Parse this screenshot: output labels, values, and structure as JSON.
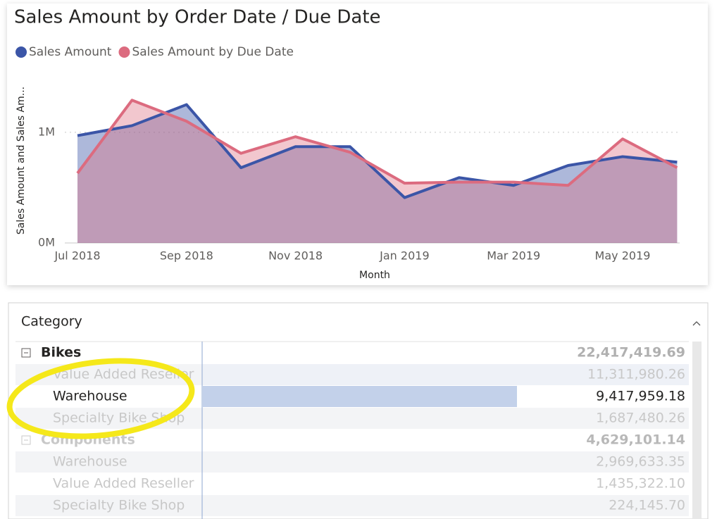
{
  "chart_data": {
    "type": "line",
    "title": "Sales Amount by Order Date / Due Date",
    "x_label": "Month",
    "y_label": "Sales Amount and Sales Am...",
    "categories": [
      "Jul 2018",
      null,
      "Sep 2018",
      null,
      "Nov 2018",
      null,
      "Jan 2019",
      null,
      "Mar 2019",
      null,
      "May 2019",
      null
    ],
    "series": [
      {
        "name": "Sales Amount",
        "color": "#3b55a7",
        "values": [
          0.97,
          1.06,
          1.25,
          0.68,
          0.87,
          0.87,
          0.41,
          0.59,
          0.52,
          0.7,
          0.78,
          0.73
        ]
      },
      {
        "name": "Sales Amount by Due Date",
        "color": "#dc6b7f",
        "values": [
          0.63,
          1.29,
          1.1,
          0.81,
          0.96,
          0.82,
          0.54,
          0.55,
          0.55,
          0.52,
          0.94,
          0.68
        ]
      }
    ],
    "ylim": [
      0,
      1.4
    ],
    "yticks": [
      {
        "value": 0,
        "label": "0M"
      },
      {
        "value": 1,
        "label": "1M"
      }
    ],
    "grid": true
  },
  "matrix": {
    "header": "Category",
    "groups": [
      {
        "label": "Bikes",
        "total": "22,417,419.69",
        "children": [
          {
            "label": "Value Added Reseller",
            "value": "11,311,980.26"
          },
          {
            "label": "Warehouse",
            "value": "9,417,959.18"
          },
          {
            "label": "Specialty Bike Shop",
            "value": "1,687,480.26"
          }
        ]
      },
      {
        "label": "Components",
        "total": "4,629,101.14",
        "children": [
          {
            "label": "Warehouse",
            "value": "2,969,633.35"
          },
          {
            "label": "Value Added Reseller",
            "value": "1,435,322.10"
          },
          {
            "label": "Specialty Bike Shop",
            "value": "224,145.70"
          }
        ]
      }
    ]
  }
}
